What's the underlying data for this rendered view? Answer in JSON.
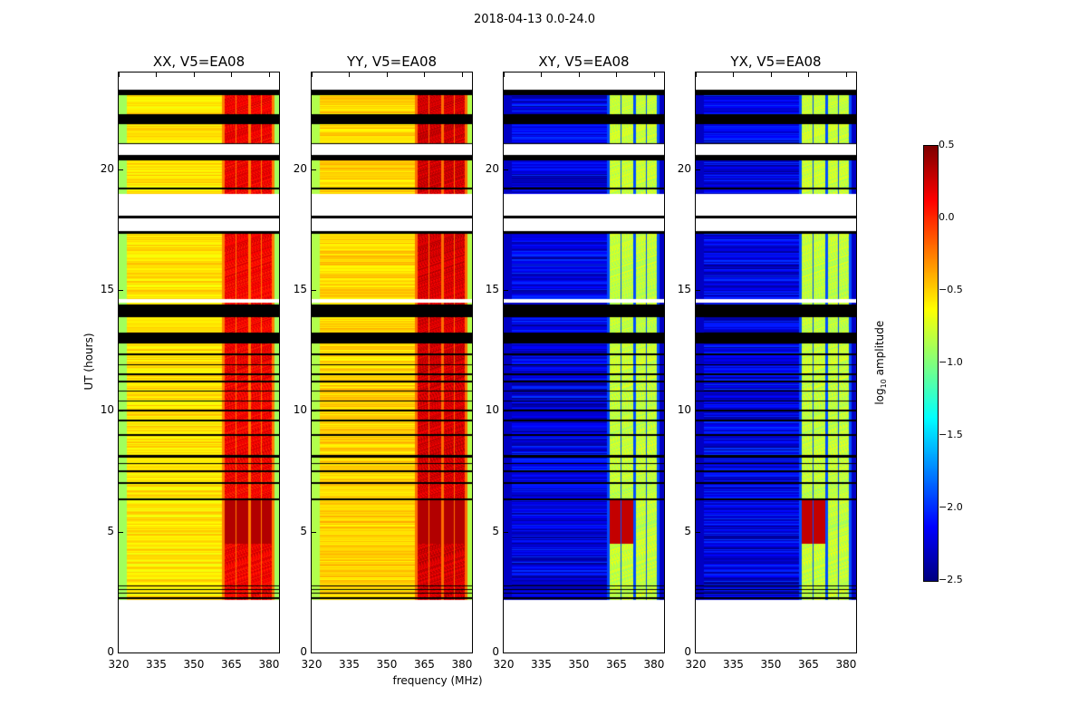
{
  "chart_data": {
    "type": "heatmap",
    "title": "2018-04-13 0.0-24.0",
    "xlabel": "frequency (MHz)",
    "ylabel": "UT (hours)",
    "xlim": [
      320,
      384
    ],
    "ylim": [
      0,
      24
    ],
    "xticks": [
      "320",
      "335",
      "350",
      "365",
      "380"
    ],
    "xtick_values": [
      320,
      335,
      350,
      365,
      380
    ],
    "yticks": [
      "0",
      "5",
      "10",
      "15",
      "20"
    ],
    "ytick_values": [
      0,
      5,
      10,
      15,
      20
    ],
    "panels": [
      {
        "title": "XX, V5=EA08",
        "base": -0.55,
        "edge": -0.9,
        "band": 0.15
      },
      {
        "title": "YY, V5=EA08",
        "base": -0.5,
        "edge": -0.85,
        "band": 0.25
      },
      {
        "title": "XY, V5=EA08",
        "base": -2.2,
        "edge": -2.3,
        "band": -0.8
      },
      {
        "title": "YX, V5=EA08",
        "base": -2.2,
        "edge": -2.3,
        "band": -0.8
      }
    ],
    "band_channels_mhz": [
      [
        362,
        366.5
      ],
      [
        367,
        371.5
      ],
      [
        372.5,
        376.5
      ],
      [
        377,
        381
      ]
    ],
    "data_segments_ut": [
      [
        2.2,
        6.35
      ],
      [
        6.4,
        12.3
      ],
      [
        12.35,
        14.5
      ],
      [
        14.65,
        17.4
      ],
      [
        19.0,
        20.55
      ],
      [
        21.1,
        23.3
      ]
    ],
    "flagged_black_ut": [
      [
        2.25,
        2.3
      ],
      [
        2.45,
        2.5
      ],
      [
        2.6,
        2.65
      ],
      [
        2.75,
        2.8
      ],
      [
        6.3,
        6.4
      ],
      [
        7.0,
        7.05
      ],
      [
        7.5,
        7.55
      ],
      [
        7.8,
        7.85
      ],
      [
        8.1,
        8.2
      ],
      [
        9.0,
        9.05
      ],
      [
        9.6,
        9.65
      ],
      [
        10.0,
        10.05
      ],
      [
        10.4,
        10.45
      ],
      [
        10.8,
        10.85
      ],
      [
        11.2,
        11.25
      ],
      [
        11.5,
        11.55
      ],
      [
        11.9,
        11.95
      ],
      [
        12.3,
        12.4
      ],
      [
        12.8,
        13.25
      ],
      [
        13.9,
        14.4
      ],
      [
        17.35,
        17.45
      ],
      [
        18.0,
        18.1
      ],
      [
        19.2,
        19.25
      ],
      [
        20.4,
        20.6
      ],
      [
        21.05,
        21.1
      ],
      [
        21.9,
        22.3
      ],
      [
        23.1,
        23.3
      ]
    ],
    "colorbar": {
      "label": "log10 amplitude",
      "range": [
        -2.5,
        0.5
      ],
      "ticks": [
        "0.5",
        "0.0",
        "−0.5",
        "−1.0",
        "−1.5",
        "−2.0",
        "−2.5"
      ],
      "tick_values": [
        0.5,
        0,
        -0.5,
        -1,
        -1.5,
        -2,
        -2.5
      ]
    }
  }
}
